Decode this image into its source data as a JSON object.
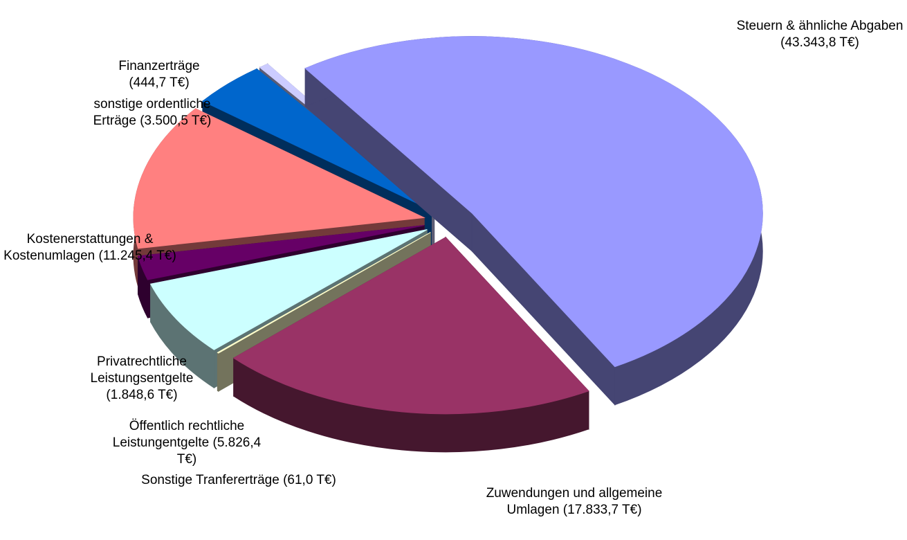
{
  "chart_data": {
    "type": "pie3d",
    "categories": [
      "Steuern & ähnliche Abgaben",
      "Zuwendungen und allgemeine Umlagen",
      "Sonstige Tranfererträge",
      "Öffentlich rechtliche Leistungentgelte",
      "Privatrechtliche Leistungsentgelte",
      "Kostenerstattungen & Kostenumlagen",
      "sonstige ordentliche Erträge",
      "Finanzerträge"
    ],
    "values": [
      43343.8,
      17833.7,
      61.0,
      5826.4,
      1848.6,
      11245.4,
      3500.5,
      444.7
    ],
    "value_labels": [
      "(43.343,8 T€)",
      "(17.833,7 T€)",
      "(61,0 T€)",
      "(5.826,4 T€)",
      "(1.848,6 T€)",
      "(11.245,4 T€)",
      "(3.500,5 T€)",
      "(444,7 T€)"
    ],
    "colors": [
      "#9999ff",
      "#993366",
      "#ffffcc",
      "#ccffff",
      "#660066",
      "#ff8080",
      "#0066cc",
      "#ccccff"
    ]
  }
}
